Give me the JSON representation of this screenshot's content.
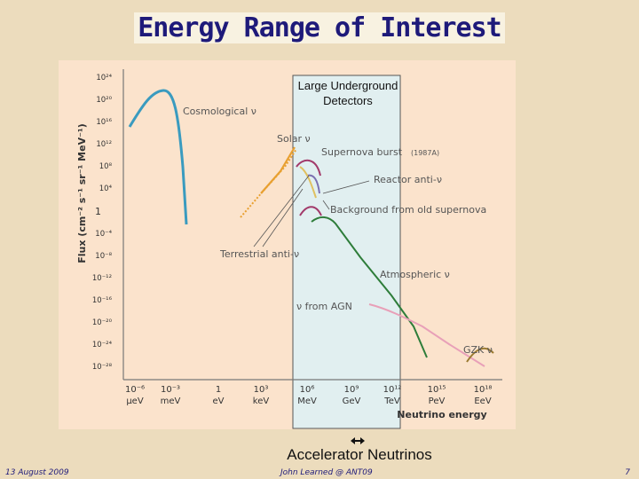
{
  "slide": {
    "title": "Energy Range of Interest",
    "footer_left": "13 August 2009",
    "footer_center": "John Learned @ ANT09",
    "footer_right": "7"
  },
  "annotations": {
    "detector_box_label": "Large Underground Detectors",
    "accelerator_label": "Accelerator Neutrinos"
  },
  "figure": {
    "ylabel": "Flux (cm⁻² s⁻¹ sr⁻¹ MeV⁻¹)",
    "xlabel": "Neutrino energy",
    "y_ticks": [
      "10²⁴",
      "10²⁰",
      "10¹⁶",
      "10¹²",
      "10⁸",
      "10⁴",
      "1",
      "10⁻⁴",
      "10⁻⁸",
      "10⁻¹²",
      "10⁻¹⁶",
      "10⁻²⁰",
      "10⁻²⁴",
      "10⁻²⁸"
    ],
    "x_ticks": [
      "10⁻⁶",
      "10⁻³",
      "1",
      "10³",
      "10⁶",
      "10⁹",
      "10¹²",
      "10¹⁵",
      "10¹⁸"
    ],
    "x_units": [
      "μeV",
      "meV",
      "eV",
      "keV",
      "MeV",
      "GeV",
      "TeV",
      "PeV",
      "EeV"
    ],
    "labels": {
      "cosmological": "Cosmological ν",
      "solar": "Solar ν",
      "supernova": "Supernova burst",
      "supernova_year": "(1987A)",
      "reactor": "Reactor anti-ν",
      "background_sn": "Background from old supernova",
      "terrestrial": "Terrestrial anti-ν",
      "atmospheric": "Atmospheric ν",
      "agn": "ν from AGN",
      "gzk": "GZK ν"
    },
    "colors": {
      "cosmological": "#3a9bbf",
      "solar": "#e8a030",
      "supernova": "#a23a6a",
      "reactor": "#7a6fb0",
      "atmospheric": "#2e7d3a",
      "agn": "#e8a0b8",
      "gzk": "#9a7a30",
      "detector_box": "#e0f0f0"
    }
  }
}
